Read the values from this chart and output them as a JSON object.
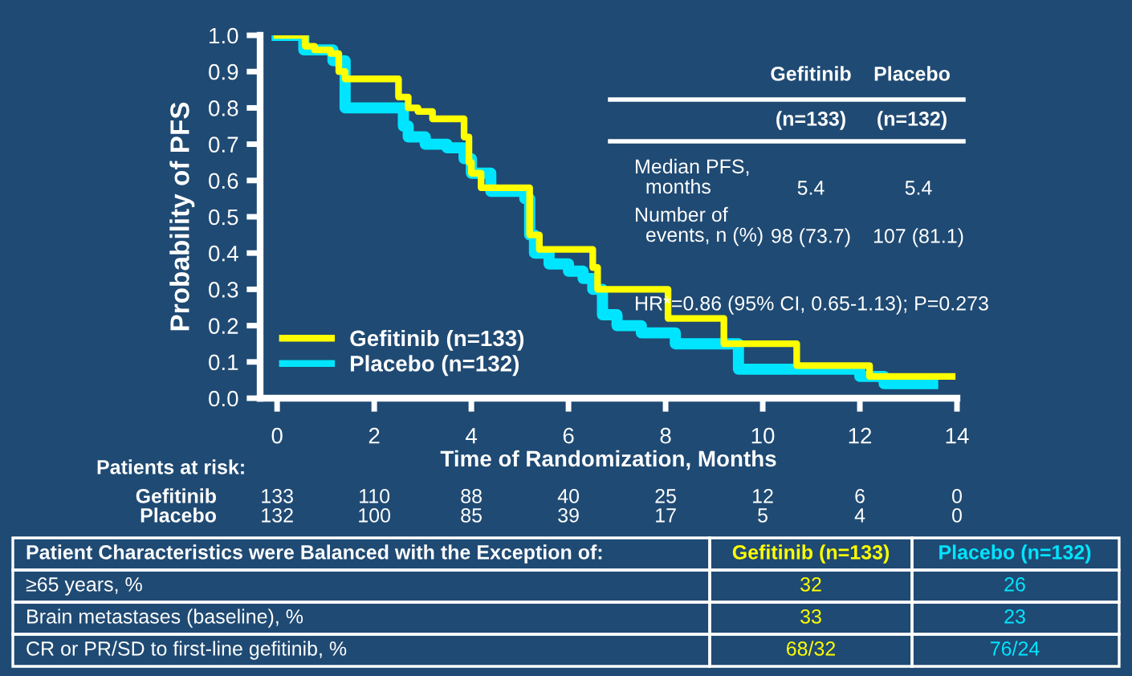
{
  "chart_data": {
    "type": "step",
    "ylabel": "Probability of PFS",
    "xlabel": "Time of Randomization, Months",
    "xlim": [
      -0.35,
      14
    ],
    "xticks": [
      0,
      2,
      4,
      6,
      8,
      10,
      12,
      14
    ],
    "ylim": [
      0,
      1.0
    ],
    "yticks": [
      {
        "value": 0,
        "label": "0.0"
      },
      0.1,
      0.2,
      0.3,
      0.4,
      0.5,
      0.6,
      0.7,
      0.8,
      0.9,
      {
        "value": 1,
        "label": "1.0"
      }
    ],
    "grid": false,
    "legend": "bottom left",
    "marker": "none",
    "line_style": "solid",
    "series": [
      {
        "name": "Gefitinib (n=133)",
        "color": "#ffff00",
        "x": [
          0,
          0.58,
          0.77,
          1.1,
          1.27,
          1.4,
          2.5,
          2.7,
          2.9,
          3.2,
          3.85,
          3.95,
          4.0,
          4.2,
          5.2,
          5.4,
          6.5,
          6.6,
          8.05,
          9.2,
          10.7,
          12.2,
          13.9
        ],
        "values": [
          1.0,
          0.97,
          0.96,
          0.95,
          0.9,
          0.88,
          0.83,
          0.8,
          0.79,
          0.77,
          0.72,
          0.65,
          0.62,
          0.58,
          0.45,
          0.41,
          0.36,
          0.3,
          0.22,
          0.15,
          0.09,
          0.06,
          0.06
        ]
      },
      {
        "name": "Placebo (n=132)",
        "color": "#00e5ff",
        "x": [
          0,
          0.55,
          1.15,
          1.4,
          2.6,
          2.7,
          3.05,
          3.5,
          3.85,
          4.0,
          4.4,
          5.1,
          5.2,
          5.3,
          5.6,
          6.0,
          6.3,
          6.5,
          6.7,
          7.0,
          7.5,
          8.2,
          9.5,
          12.0,
          12.5,
          13.5
        ],
        "values": [
          1.0,
          0.96,
          0.93,
          0.8,
          0.75,
          0.72,
          0.7,
          0.69,
          0.66,
          0.62,
          0.57,
          0.55,
          0.45,
          0.4,
          0.37,
          0.35,
          0.33,
          0.3,
          0.23,
          0.2,
          0.18,
          0.15,
          0.08,
          0.06,
          0.04,
          0.04
        ]
      }
    ],
    "annotations": [
      "Patients at risk:",
      "Gefitinib",
      "133",
      "110",
      "88",
      "40",
      "25",
      "12",
      "6",
      "0",
      "Placebo",
      "132",
      "100",
      "85",
      "39",
      "17",
      "5",
      "4",
      "0",
      "Gefitinib",
      "Placebo",
      "(n=133)",
      "(n=132)",
      "Median PFS,\n  months",
      "5.4",
      "5.4",
      "Number of\n  events, n (%)",
      "98 (73.7)",
      "107 (81.1)",
      "HR*=0.86 (95% CI, 0.65-1.13); P=0.273",
      "Patient Characteristics were Balanced with the Exception of:",
      "Gefitinib (n=133)",
      "Placebo (n=132)",
      "≥65 years, %",
      "32",
      "26",
      "Brain metastases (baseline), %",
      "33",
      "23",
      "CR or PR/SD to first-line gefitinib, %",
      "68/32",
      "76/24"
    ]
  }
}
